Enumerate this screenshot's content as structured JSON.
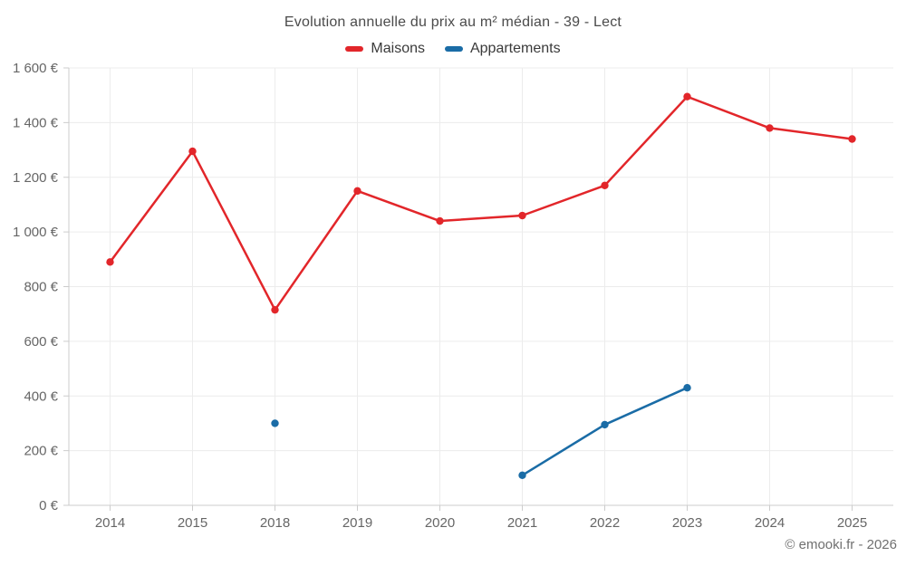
{
  "chart_data": {
    "type": "line",
    "title": "Evolution annuelle du prix au m² médian - 39 - Lect",
    "categories": [
      "2014",
      "2015",
      "2018",
      "2019",
      "2020",
      "2021",
      "2022",
      "2023",
      "2024",
      "2025"
    ],
    "series": [
      {
        "name": "Maisons",
        "color": "#e2262a",
        "values": [
          890,
          1295,
          715,
          1150,
          1040,
          1060,
          1170,
          1495,
          1380,
          1340
        ]
      },
      {
        "name": "Appartements",
        "color": "#1a6ca6",
        "values": [
          null,
          null,
          300,
          null,
          null,
          110,
          295,
          430,
          null,
          null
        ]
      }
    ],
    "ylabel": "",
    "xlabel": "",
    "ylim": [
      0,
      1600
    ],
    "ytick_step": 200,
    "ytick_labels": [
      "0 €",
      "200 €",
      "400 €",
      "600 €",
      "800 €",
      "1 000 €",
      "1 200 €",
      "1 400 €",
      "1 600 €"
    ],
    "grid": true,
    "legend_position": "top"
  },
  "footer": {
    "copyright": "© emooki.fr - 2026"
  }
}
